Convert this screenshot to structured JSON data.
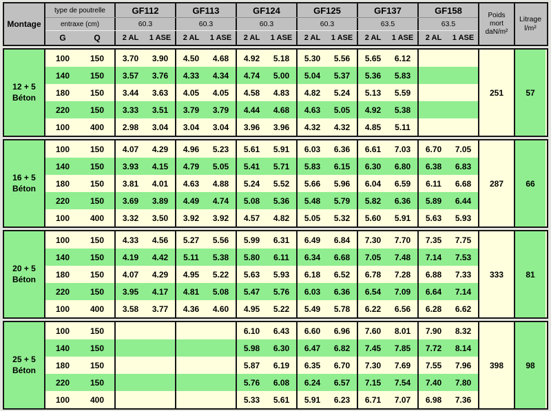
{
  "colors": {
    "green": "#90EE90",
    "cream": "#FFFFDE",
    "header_gray": "#C0C0C0",
    "border": "#151515"
  },
  "header": {
    "montage": "Montage",
    "type_de_poutrelle": "type de poutrelle",
    "entraxe": "entraxe (cm)",
    "g": "G",
    "q": "Q",
    "al": "2 AL",
    "ase": "1 ASE",
    "poids_lines": [
      "Poids",
      "mort",
      "daN/m²"
    ],
    "litrage_lines": [
      "Litrage",
      "l/m²"
    ],
    "girders": [
      {
        "name": "GF112",
        "entraxe": "60.3"
      },
      {
        "name": "GF113",
        "entraxe": "60.3"
      },
      {
        "name": "GF124",
        "entraxe": "60.3"
      },
      {
        "name": "GF125",
        "entraxe": "60.3"
      },
      {
        "name": "GF137",
        "entraxe": "63.5"
      },
      {
        "name": "GF158",
        "entraxe": "63.5"
      }
    ]
  },
  "blocks": [
    {
      "montage_lines": [
        "12 + 5",
        "Béton"
      ],
      "poids": "251",
      "litrage": "57",
      "rows": [
        {
          "g": "100",
          "q": "150",
          "values": [
            "3.70",
            "3.90",
            "4.50",
            "4.68",
            "4.92",
            "5.18",
            "5.30",
            "5.56",
            "5.65",
            "6.12",
            "",
            ""
          ]
        },
        {
          "g": "140",
          "q": "150",
          "values": [
            "3.57",
            "3.76",
            "4.33",
            "4.34",
            "4.74",
            "5.00",
            "5.04",
            "5.37",
            "5.36",
            "5.83",
            "",
            ""
          ]
        },
        {
          "g": "180",
          "q": "150",
          "values": [
            "3.44",
            "3.63",
            "4.05",
            "4.05",
            "4.58",
            "4.83",
            "4.82",
            "5.24",
            "5.13",
            "5.59",
            "",
            ""
          ]
        },
        {
          "g": "220",
          "q": "150",
          "values": [
            "3.33",
            "3.51",
            "3.79",
            "3.79",
            "4.44",
            "4.68",
            "4.63",
            "5.05",
            "4.92",
            "5.38",
            "",
            ""
          ]
        },
        {
          "g": "100",
          "q": "400",
          "values": [
            "2.98",
            "3.04",
            "3.04",
            "3.04",
            "3.96",
            "3.96",
            "4.32",
            "4.32",
            "4.85",
            "5.11",
            "",
            ""
          ]
        }
      ]
    },
    {
      "montage_lines": [
        "16 + 5",
        "Béton"
      ],
      "poids": "287",
      "litrage": "66",
      "rows": [
        {
          "g": "100",
          "q": "150",
          "values": [
            "4.07",
            "4.29",
            "4.96",
            "5.23",
            "5.61",
            "5.91",
            "6.03",
            "6.36",
            "6.61",
            "7.03",
            "6.70",
            "7.05"
          ]
        },
        {
          "g": "140",
          "q": "150",
          "values": [
            "3.93",
            "4.15",
            "4.79",
            "5.05",
            "5.41",
            "5.71",
            "5.83",
            "6.15",
            "6.30",
            "6.80",
            "6.38",
            "6.83"
          ]
        },
        {
          "g": "180",
          "q": "150",
          "values": [
            "3.81",
            "4.01",
            "4.63",
            "4.88",
            "5.24",
            "5.52",
            "5.66",
            "5.96",
            "6.04",
            "6.59",
            "6.11",
            "6.68"
          ]
        },
        {
          "g": "220",
          "q": "150",
          "values": [
            "3.69",
            "3.89",
            "4.49",
            "4.74",
            "5.08",
            "5.36",
            "5.48",
            "5.79",
            "5.82",
            "6.36",
            "5.89",
            "6.44"
          ]
        },
        {
          "g": "100",
          "q": "400",
          "values": [
            "3.32",
            "3.50",
            "3.92",
            "3.92",
            "4.57",
            "4.82",
            "5.05",
            "5.32",
            "5.60",
            "5.91",
            "5.63",
            "5.93"
          ]
        }
      ]
    },
    {
      "montage_lines": [
        "20 + 5",
        "Béton"
      ],
      "poids": "333",
      "litrage": "81",
      "rows": [
        {
          "g": "100",
          "q": "150",
          "values": [
            "4.33",
            "4.56",
            "5.27",
            "5.56",
            "5.99",
            "6.31",
            "6.49",
            "6.84",
            "7.30",
            "7.70",
            "7.35",
            "7.75"
          ]
        },
        {
          "g": "140",
          "q": "150",
          "values": [
            "4.19",
            "4.42",
            "5.11",
            "5.38",
            "5.80",
            "6.11",
            "6.34",
            "6.68",
            "7.05",
            "7.48",
            "7.14",
            "7.53"
          ]
        },
        {
          "g": "180",
          "q": "150",
          "values": [
            "4.07",
            "4.29",
            "4.95",
            "5.22",
            "5.63",
            "5.93",
            "6.18",
            "6.52",
            "6.78",
            "7.28",
            "6.88",
            "7.33"
          ]
        },
        {
          "g": "220",
          "q": "150",
          "values": [
            "3.95",
            "4.17",
            "4.81",
            "5.08",
            "5.47",
            "5.76",
            "6.03",
            "6.36",
            "6.54",
            "7.09",
            "6.64",
            "7.14"
          ]
        },
        {
          "g": "100",
          "q": "400",
          "values": [
            "3.58",
            "3.77",
            "4.36",
            "4.60",
            "4.95",
            "5.22",
            "5.49",
            "5.78",
            "6.22",
            "6.56",
            "6.28",
            "6.62"
          ]
        }
      ]
    },
    {
      "montage_lines": [
        "25 + 5",
        "Béton"
      ],
      "poids": "398",
      "litrage": "98",
      "rows": [
        {
          "g": "100",
          "q": "150",
          "values": [
            "",
            "",
            "",
            "",
            "6.10",
            "6.43",
            "6.60",
            "6.96",
            "7.60",
            "8.01",
            "7.90",
            "8.32"
          ]
        },
        {
          "g": "140",
          "q": "150",
          "values": [
            "",
            "",
            "",
            "",
            "5.98",
            "6.30",
            "6.47",
            "6.82",
            "7.45",
            "7.85",
            "7.72",
            "8.14"
          ]
        },
        {
          "g": "180",
          "q": "150",
          "values": [
            "",
            "",
            "",
            "",
            "5.87",
            "6.19",
            "6.35",
            "6.70",
            "7.30",
            "7.69",
            "7.55",
            "7.96"
          ]
        },
        {
          "g": "220",
          "q": "150",
          "values": [
            "",
            "",
            "",
            "",
            "5.76",
            "6.08",
            "6.24",
            "6.57",
            "7.15",
            "7.54",
            "7.40",
            "7.80"
          ]
        },
        {
          "g": "100",
          "q": "400",
          "values": [
            "",
            "",
            "",
            "",
            "5.33",
            "5.61",
            "5.91",
            "6.23",
            "6.71",
            "7.07",
            "6.98",
            "7.36"
          ]
        }
      ]
    }
  ]
}
